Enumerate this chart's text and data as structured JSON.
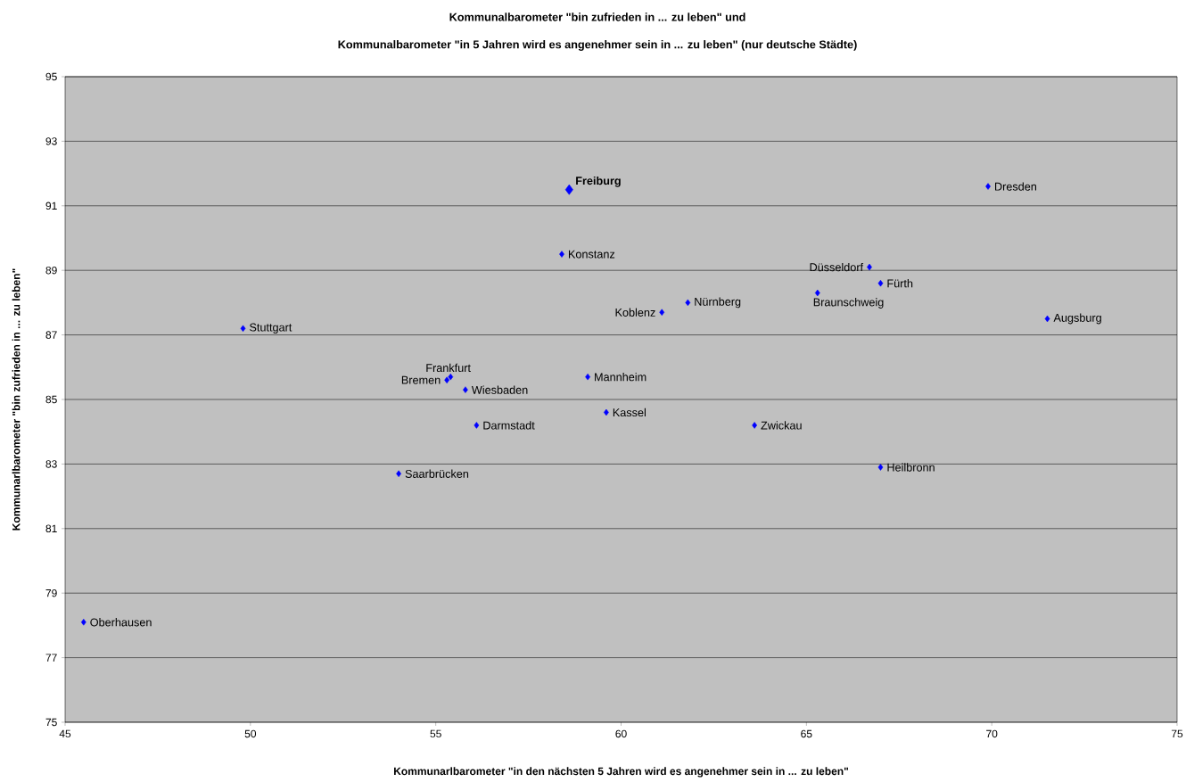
{
  "chart_data": {
    "type": "scatter",
    "title": "Kommunalbarometer \"bin zufrieden in ... zu leben\" und",
    "subtitle": "Kommunalbarometer \"in 5 Jahren wird es angenehmer sein in ... zu leben\" (nur deutsche Städte)",
    "xlabel": "Kommunarlbarometer \"in den nächsten 5 Jahren wird es angenehmer sein in ... zu leben\"",
    "ylabel": "Kommunarlbarometer \"bin zufrieden in ... zu leben\"",
    "xlim": [
      45,
      75
    ],
    "ylim": [
      75,
      95
    ],
    "xticks": [
      45,
      50,
      55,
      60,
      65,
      70,
      75
    ],
    "yticks": [
      75,
      77,
      79,
      81,
      83,
      85,
      87,
      89,
      91,
      93,
      95
    ],
    "grid": "y",
    "marker": "diamond",
    "series": [
      {
        "color": "#0000ff",
        "x": [
          69.9,
          58.4,
          66.7,
          67.0,
          65.3,
          61.8,
          61.1,
          71.5,
          49.8,
          55.4,
          55.3,
          55.8,
          59.1,
          59.6,
          56.1,
          63.6,
          67.0,
          54.0,
          45.5
        ],
        "values": [
          91.6,
          89.5,
          89.1,
          88.6,
          88.3,
          88.0,
          87.7,
          87.5,
          87.2,
          85.7,
          85.6,
          85.3,
          85.7,
          84.6,
          84.2,
          84.2,
          82.9,
          82.7,
          78.1
        ]
      },
      {
        "name": "Freiburg",
        "color": "#0000ff",
        "x": [
          58.6
        ],
        "values": [
          91.5
        ]
      }
    ],
    "annotations": [
      {
        "text": "Dresden",
        "x": 69.9,
        "y": 91.6
      },
      {
        "text": "Konstanz",
        "x": 58.4,
        "y": 89.5
      },
      {
        "text": "Düsseldorf",
        "x": 66.7,
        "y": 89.1
      },
      {
        "text": "Fürth",
        "x": 67.0,
        "y": 88.6
      },
      {
        "text": "Braunschweig",
        "x": 65.3,
        "y": 88.3
      },
      {
        "text": "Nürnberg",
        "x": 61.8,
        "y": 88.0
      },
      {
        "text": "Koblenz",
        "x": 61.1,
        "y": 87.7
      },
      {
        "text": "Augsburg",
        "x": 71.5,
        "y": 87.5
      },
      {
        "text": "Stuttgart",
        "x": 49.8,
        "y": 87.2
      },
      {
        "text": "Frankfurt",
        "x": 55.4,
        "y": 85.7
      },
      {
        "text": "Bremen",
        "x": 55.3,
        "y": 85.6
      },
      {
        "text": "Wiesbaden",
        "x": 55.8,
        "y": 85.3
      },
      {
        "text": "Mannheim",
        "x": 59.1,
        "y": 85.7
      },
      {
        "text": "Kassel",
        "x": 59.6,
        "y": 84.6
      },
      {
        "text": "Darmstadt",
        "x": 56.1,
        "y": 84.2
      },
      {
        "text": "Zwickau",
        "x": 63.6,
        "y": 84.2
      },
      {
        "text": "Heilbronn",
        "x": 67.0,
        "y": 82.9
      },
      {
        "text": "Saarbrücken",
        "x": 54.0,
        "y": 82.7
      },
      {
        "text": "Oberhausen",
        "x": 45.5,
        "y": 78.1
      }
    ]
  }
}
